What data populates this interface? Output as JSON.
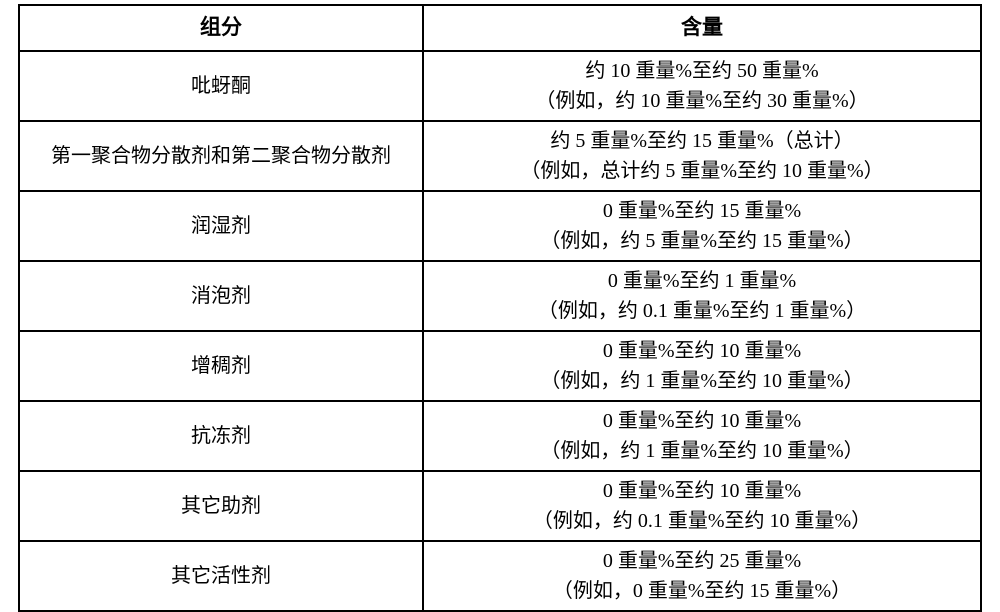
{
  "table": {
    "columns": [
      "组分",
      "含量"
    ],
    "rows": [
      {
        "component": "吡蚜酮",
        "amount_main": "约 10 重量%至约 50 重量%",
        "amount_sub": "（例如，约 10 重量%至约 30 重量%）"
      },
      {
        "component": "第一聚合物分散剂和第二聚合物分散剂",
        "amount_main": "约 5 重量%至约 15 重量%（总计）",
        "amount_sub": "（例如，总计约 5 重量%至约 10 重量%）"
      },
      {
        "component": "润湿剂",
        "amount_main": "0 重量%至约 15 重量%",
        "amount_sub": "（例如，约 5 重量%至约 15 重量%）"
      },
      {
        "component": "消泡剂",
        "amount_main": "0 重量%至约 1 重量%",
        "amount_sub": "（例如，约 0.1 重量%至约 1 重量%）"
      },
      {
        "component": "增稠剂",
        "amount_main": "0 重量%至约 10 重量%",
        "amount_sub": "（例如，约 1 重量%至约 10 重量%）"
      },
      {
        "component": "抗冻剂",
        "amount_main": "0 重量%至约 10 重量%",
        "amount_sub": "（例如，约 1 重量%至约 10 重量%）"
      },
      {
        "component": "其它助剂",
        "amount_main": "0 重量%至约 10 重量%",
        "amount_sub": "（例如，约 0.1 重量%至约 10 重量%）"
      },
      {
        "component": "其它活性剂",
        "amount_main": "0 重量%至约 25 重量%",
        "amount_sub": "（例如，0 重量%至约 15 重量%）"
      }
    ],
    "border_color": "#000000",
    "background_color": "#ffffff",
    "font_color": "#000000",
    "header_fontsize": 21,
    "cell_fontsize": 20
  }
}
